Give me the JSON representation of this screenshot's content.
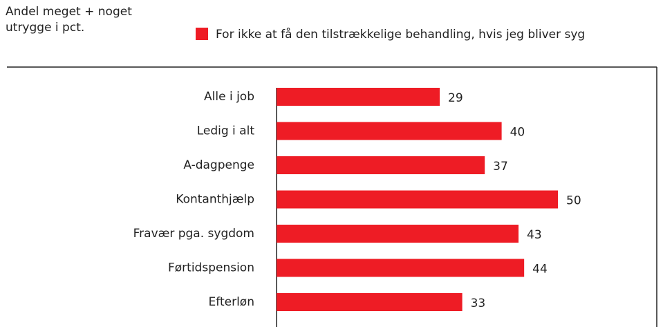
{
  "chart_data": {
    "type": "bar",
    "orientation": "horizontal",
    "title": "Andel meget + noget utrygge i pct.",
    "categories": [
      "Alle i job",
      "Ledig i alt",
      "A-dagpenge",
      "Kontanthjælp",
      "Fravær pga. sygdom",
      "Førtidspension",
      "Efterløn"
    ],
    "series": [
      {
        "name": "For ikke at få den tilstrækkelige behandling, hvis jeg bliver syg",
        "color": "#ee1c25",
        "values": [
          29,
          40,
          37,
          50,
          43,
          44,
          33
        ]
      }
    ],
    "legend": "top"
  }
}
